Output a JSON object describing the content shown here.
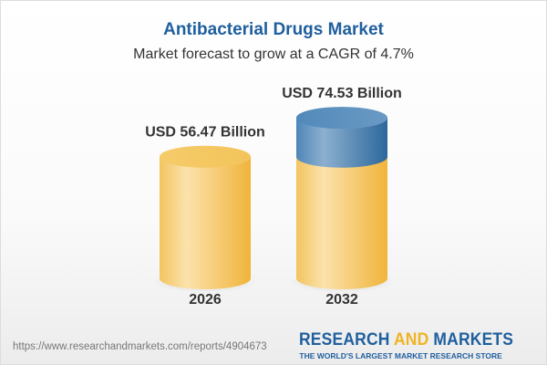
{
  "header": {
    "title": "Antibacterial Drugs Market",
    "subtitle": "Market forecast to grow at a CAGR of 4.7%"
  },
  "chart_data": {
    "type": "bar",
    "style": "3d-cylinder",
    "categories": [
      "2026",
      "2032"
    ],
    "values": [
      56.47,
      74.53
    ],
    "data_labels": [
      "USD 56.47 Billion",
      "USD 74.53 Billion"
    ],
    "unit": "USD Billion",
    "colors": {
      "base": "#f5c455",
      "growth": "#3d7bb0"
    }
  },
  "footer": {
    "url": "https://www.researchandmarkets.com/reports/4904673",
    "logo_part1": "RESEARCH ",
    "logo_part2": "AND",
    "logo_part3": " MARKETS",
    "tagline": "THE WORLD'S LARGEST MARKET RESEARCH STORE"
  }
}
